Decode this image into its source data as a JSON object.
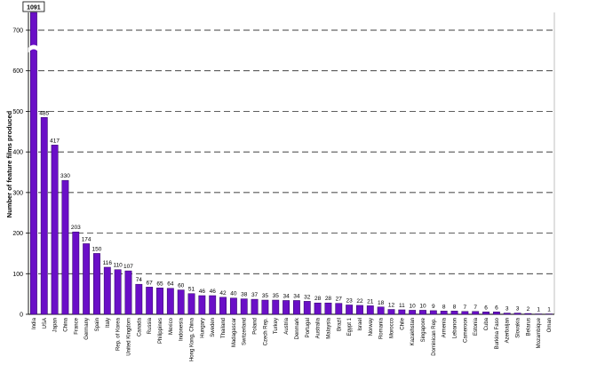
{
  "chart_data": {
    "type": "bar",
    "title": "",
    "xlabel": "",
    "ylabel": "Number of feature films produced",
    "ylim": [
      0,
      700
    ],
    "yticks": [
      0,
      100,
      200,
      300,
      400,
      500,
      600,
      700
    ],
    "grid": true,
    "axis_break": true,
    "colors": {
      "bar": "#6a0fc7",
      "bar_edge": "#2b0060",
      "grid": "#000000"
    },
    "categories": [
      "India",
      "USA",
      "Japan",
      "China",
      "France",
      "Germany",
      "Spain",
      "Italy",
      "Rep. of Korea",
      "United Kingdom",
      "Canada",
      "Russia",
      "Philippines",
      "Mexico",
      "Indonesia",
      "Hong Kong, China",
      "Hungary",
      "Sweden",
      "Thailand",
      "Madagascar",
      "Switzerland",
      "Poland",
      "Czech Rep.",
      "Turkey",
      "Austria",
      "Denmark",
      "Portugal",
      "Australia",
      "Malaysia",
      "Brazil",
      "Egypt 1",
      "Israel",
      "Norway",
      "Romania",
      "Morocco",
      "Chile",
      "Kazakhstan",
      "Singapore",
      "Dominican Rep.",
      "Armenia",
      "Lebanon",
      "Cameroon",
      "Estonia",
      "Cuba",
      "Burkina Faso",
      "Azerbaijan",
      "Slovakia",
      "Belarus",
      "Mozambique",
      "Oman"
    ],
    "values": [
      1091,
      485,
      417,
      330,
      203,
      174,
      150,
      116,
      110,
      107,
      74,
      67,
      65,
      64,
      60,
      51,
      46,
      46,
      42,
      40,
      38,
      37,
      35,
      35,
      34,
      34,
      32,
      28,
      28,
      27,
      23,
      22,
      21,
      18,
      12,
      11,
      10,
      10,
      9,
      8,
      8,
      7,
      7,
      6,
      6,
      3,
      3,
      2,
      1,
      1
    ],
    "data_labels": [
      "1091",
      "485",
      "417",
      "330",
      "203",
      "174",
      "150",
      "116",
      "110",
      "107",
      "74",
      "67",
      "65",
      "64",
      "60",
      "51",
      "46",
      "46",
      "42",
      "40",
      "38",
      "37",
      "35",
      "35",
      "34",
      "34",
      "32",
      "28",
      "28",
      "27",
      "23",
      "22",
      "21",
      "18",
      "12",
      "11",
      "10",
      "10",
      "9",
      "8",
      "8",
      "7",
      "7",
      "6",
      "6",
      "3",
      "3",
      "2",
      "1",
      "1"
    ]
  }
}
